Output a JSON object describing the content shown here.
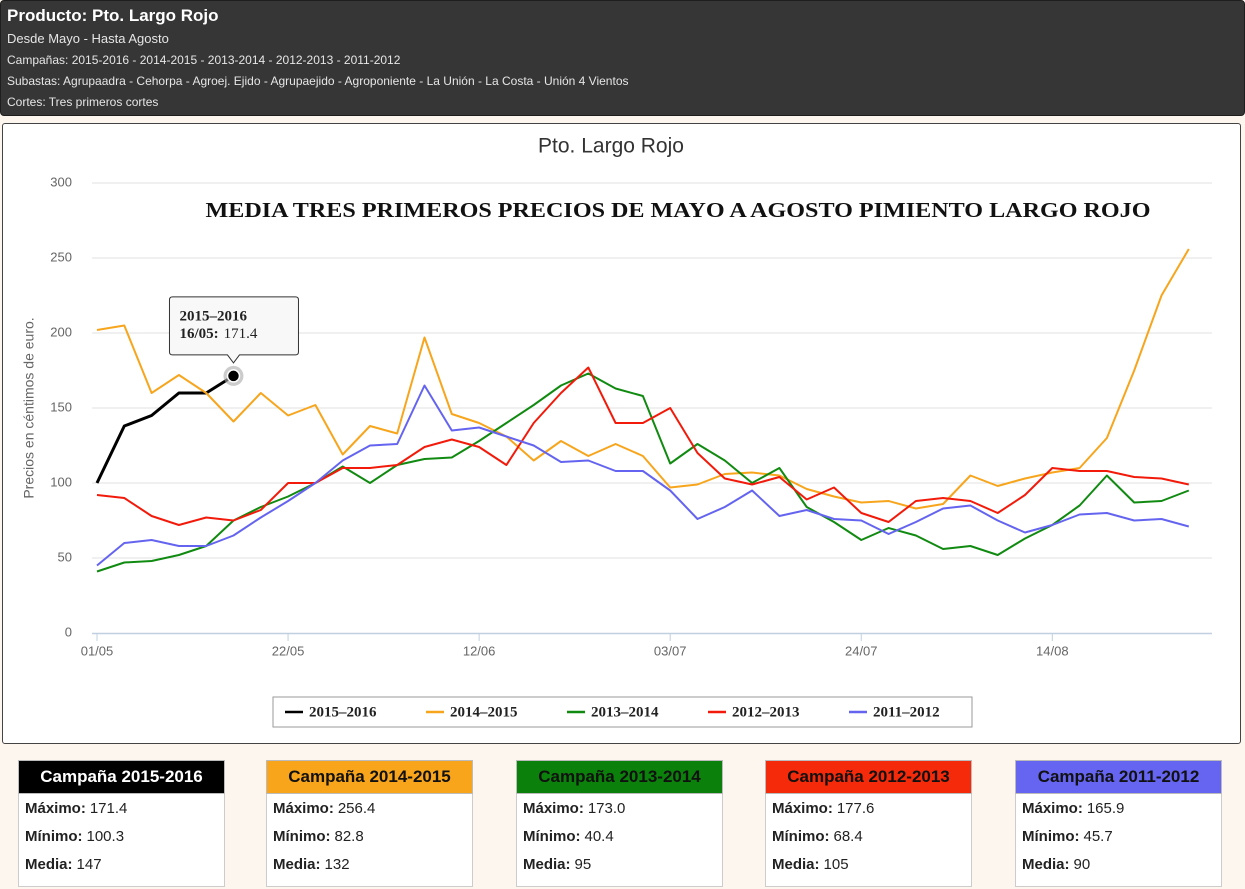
{
  "header": {
    "title": "Producto: Pto. Largo Rojo",
    "lines": [
      "Desde Mayo - Hasta Agosto",
      "Campañas: 2015-2016 - 2014-2015 - 2013-2014 - 2012-2013 - 2011-2012",
      "Subastas: Agrupaadra - Cehorpa - Agroej. Ejido - Agrupaejido - Agroponiente - La Unión - La Costa - Unión 4 Vientos",
      "Cortes: Tres primeros cortes"
    ]
  },
  "chart_data": {
    "type": "line",
    "title": "Pto. Largo Rojo",
    "subtitle": "MEDIA TRES PRIMEROS PRECIOS DE MAYO A AGOSTO PIMIENTO LARGO ROJO",
    "ylabel": "Precios en céntimos de euro.",
    "x": [
      "01/05",
      "04/05",
      "07/05",
      "10/05",
      "13/05",
      "16/05",
      "19/05",
      "22/05",
      "25/05",
      "28/05",
      "31/05",
      "03/06",
      "06/06",
      "09/06",
      "12/06",
      "15/06",
      "18/06",
      "21/06",
      "24/06",
      "27/06",
      "30/06",
      "03/07",
      "06/07",
      "09/07",
      "12/07",
      "15/07",
      "18/07",
      "21/07",
      "24/07",
      "27/07",
      "30/07",
      "02/08",
      "05/08",
      "08/08",
      "11/08",
      "14/08",
      "17/08",
      "20/08",
      "23/08",
      "26/08",
      "29/08"
    ],
    "xlim": [
      "01/05",
      "31/08"
    ],
    "xticks": [
      "01/05",
      "22/05",
      "12/06",
      "03/07",
      "24/07",
      "14/08"
    ],
    "ylim": [
      0,
      300
    ],
    "yticks": [
      0,
      50,
      100,
      150,
      200,
      250,
      300
    ],
    "grid": true,
    "series": [
      {
        "name": "2015–2016",
        "color": "#000000",
        "values": [
          100,
          138,
          145,
          160,
          160,
          171.4,
          null,
          null,
          null,
          null,
          null,
          null,
          null,
          null,
          null,
          null,
          null,
          null,
          null,
          null,
          null,
          null,
          null,
          null,
          null,
          null,
          null,
          null,
          null,
          null,
          null,
          null,
          null,
          null,
          null,
          null,
          null,
          null,
          null,
          null,
          null
        ]
      },
      {
        "name": "2014–2015",
        "color": "#f7a51c",
        "values": [
          202,
          205,
          160,
          172,
          160,
          141,
          160,
          145,
          152,
          119,
          138,
          133,
          197,
          146,
          140,
          131,
          115,
          128,
          118,
          126,
          118,
          97,
          99,
          106,
          107,
          105,
          96,
          91,
          87,
          88,
          83,
          86,
          105,
          98,
          103,
          107,
          110,
          130,
          175,
          225,
          256
        ]
      },
      {
        "name": "2013–2014",
        "color": "#108a10",
        "values": [
          41,
          47,
          48,
          52,
          58,
          75,
          84,
          91,
          100,
          111,
          100,
          112,
          116,
          117,
          128,
          140,
          152,
          165,
          173,
          163,
          158,
          113,
          126,
          115,
          100,
          110,
          84,
          74,
          62,
          70,
          65,
          56,
          58,
          52,
          63,
          72,
          85,
          105,
          87,
          88,
          95
        ]
      },
      {
        "name": "2012–2013",
        "color": "#f21a0a",
        "values": [
          92,
          90,
          78,
          72,
          77,
          75,
          82,
          100,
          100,
          110,
          110,
          112,
          124,
          129,
          124,
          112,
          140,
          160,
          177,
          140,
          140,
          150,
          120,
          103,
          99,
          104,
          89,
          97,
          80,
          74,
          88,
          90,
          88,
          80,
          92,
          110,
          108,
          108,
          104,
          103,
          99
        ]
      },
      {
        "name": "2011–2012",
        "color": "#6464f0",
        "values": [
          45,
          60,
          62,
          58,
          58,
          65,
          77,
          88,
          100,
          115,
          125,
          126,
          165,
          135,
          137,
          131,
          125,
          114,
          115,
          108,
          108,
          95,
          76,
          84,
          95,
          78,
          82,
          76,
          75,
          66,
          74,
          83,
          85,
          75,
          67,
          72,
          79,
          80,
          75,
          76,
          71
        ]
      }
    ],
    "tooltip": {
      "series": "2015–2016",
      "label": "16/05:",
      "value": 171.4
    }
  },
  "cards": [
    {
      "title": "Campaña 2015-2016",
      "color": "#000000",
      "text_color": "#ffffff",
      "stats": [
        {
          "label": "Máximo:",
          "value": "171.4"
        },
        {
          "label": "Mínimo:",
          "value": "100.3"
        },
        {
          "label": "Media:",
          "value": "147"
        }
      ]
    },
    {
      "title": "Campaña 2014-2015",
      "color": "#f9a51b",
      "text_color": "#111111",
      "stats": [
        {
          "label": "Máximo:",
          "value": "256.4"
        },
        {
          "label": "Mínimo:",
          "value": "82.8"
        },
        {
          "label": "Media:",
          "value": "132"
        }
      ]
    },
    {
      "title": "Campaña 2013-2014",
      "color": "#0b800b",
      "text_color": "#111111",
      "stats": [
        {
          "label": "Máximo:",
          "value": "173.0"
        },
        {
          "label": "Mínimo:",
          "value": "40.4"
        },
        {
          "label": "Media:",
          "value": "95"
        }
      ]
    },
    {
      "title": "Campaña 2012-2013",
      "color": "#f52a0a",
      "text_color": "#111111",
      "stats": [
        {
          "label": "Máximo:",
          "value": "177.6"
        },
        {
          "label": "Mínimo:",
          "value": "68.4"
        },
        {
          "label": "Media:",
          "value": "105"
        }
      ]
    },
    {
      "title": "Campaña 2011-2012",
      "color": "#6565f2",
      "text_color": "#111111",
      "stats": [
        {
          "label": "Máximo:",
          "value": "165.9"
        },
        {
          "label": "Mínimo:",
          "value": "45.7"
        },
        {
          "label": "Media:",
          "value": "90"
        }
      ]
    }
  ]
}
